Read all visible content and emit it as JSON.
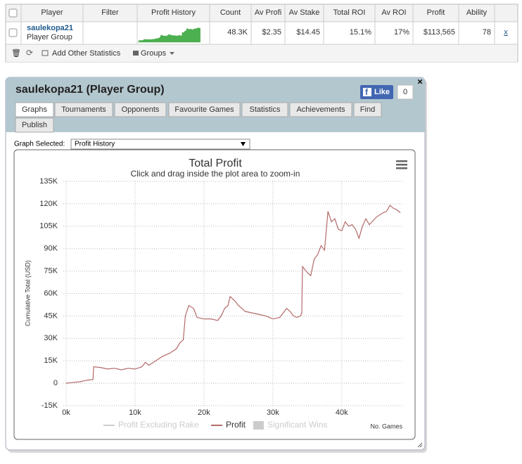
{
  "table": {
    "headers": [
      "Player",
      "Filter",
      "Profit History",
      "Count",
      "Av Profi",
      "Av Stake",
      "Total ROI",
      "Av ROI",
      "Profit",
      "Ability"
    ],
    "row": {
      "player_name": "saulekopa21",
      "player_type": "Player Group",
      "values": [
        "48.3K",
        "$2.35",
        "$14.45",
        "15.1%",
        "17%",
        "$113,565",
        "78"
      ],
      "remove": "x"
    },
    "toolbar": {
      "add_stats": "Add Other Statistics",
      "groups": "Groups"
    }
  },
  "window": {
    "title": "saulekopa21 (Player Group)",
    "like": "Like",
    "like_count": "0",
    "tabs": [
      "Graphs",
      "Tournaments",
      "Opponents",
      "Favourite Games",
      "Statistics",
      "Achievements",
      "Find",
      "Publish"
    ],
    "graph_selected_label": "Graph Selected:",
    "graph_selected": "Profit History"
  },
  "chart_data": {
    "type": "line",
    "title": "Total Profit",
    "subtitle": "Click and drag inside the plot area to zoom-in",
    "y_label": "Cumulative Total (USD)",
    "x_label": "No. Games",
    "x": [
      0,
      1000,
      2000,
      3000,
      3900,
      4000,
      5000,
      6000,
      7000,
      8000,
      9000,
      10000,
      11000,
      11500,
      12000,
      13000,
      14000,
      15000,
      16000,
      16500,
      17000,
      17300,
      17800,
      18500,
      19000,
      20000,
      21000,
      22000,
      22500,
      23000,
      23500,
      23800,
      24500,
      25000,
      26000,
      27000,
      28000,
      29000,
      30000,
      31000,
      32000,
      32500,
      33000,
      33500,
      34000,
      34200,
      34300,
      35000,
      35500,
      36000,
      36500,
      37000,
      37500,
      38000,
      38500,
      39000,
      39500,
      40000,
      40500,
      41000,
      41500,
      42000,
      42500,
      43000,
      43500,
      44000,
      45000,
      46000,
      46500,
      47000,
      47500,
      48000,
      48500
    ],
    "series": [
      {
        "name": "Profit",
        "color": "#b46a6a",
        "values": [
          0,
          500,
          1000,
          2000,
          2500,
          11000,
          10500,
          9500,
          10000,
          9000,
          10000,
          9500,
          11000,
          14000,
          12000,
          15000,
          18000,
          20000,
          23000,
          27000,
          29000,
          45000,
          52000,
          50000,
          44000,
          43000,
          43000,
          42000,
          45000,
          50000,
          52000,
          58000,
          55000,
          52000,
          48000,
          47000,
          46000,
          45000,
          43000,
          44000,
          50000,
          48000,
          45000,
          44000,
          45000,
          47000,
          78000,
          74000,
          72000,
          83000,
          86000,
          92000,
          89000,
          115000,
          108000,
          110000,
          103000,
          102000,
          108000,
          105000,
          106000,
          103000,
          97000,
          105000,
          110000,
          106000,
          111000,
          114000,
          115000,
          119000,
          117000,
          116000,
          114000
        ]
      }
    ],
    "legend_extra": [
      {
        "name": "Profit Excluding Rake",
        "color": "#cccccc"
      },
      {
        "name": "Significant Wins",
        "color": "#cccccc"
      }
    ],
    "xlim": [
      0,
      48700
    ],
    "xticks": [
      {
        "value": 0,
        "label": "0k"
      },
      {
        "value": 10000,
        "label": "10k"
      },
      {
        "value": 20000,
        "label": "20k"
      },
      {
        "value": 30000,
        "label": "30k"
      },
      {
        "value": 40000,
        "label": "40k"
      }
    ],
    "ylim": [
      -15000,
      135000
    ],
    "yticks": [
      {
        "value": -15000,
        "label": "-15K"
      },
      {
        "value": 0,
        "label": "0"
      },
      {
        "value": 15000,
        "label": "15K"
      },
      {
        "value": 30000,
        "label": "30K"
      },
      {
        "value": 45000,
        "label": "45K"
      },
      {
        "value": 60000,
        "label": "60K"
      },
      {
        "value": 75000,
        "label": "75K"
      },
      {
        "value": 90000,
        "label": "90K"
      },
      {
        "value": 105000,
        "label": "105K"
      },
      {
        "value": 120000,
        "label": "120K"
      },
      {
        "value": 135000,
        "label": "135K"
      }
    ],
    "grid": true,
    "sparkline_color": "#4caf50"
  }
}
